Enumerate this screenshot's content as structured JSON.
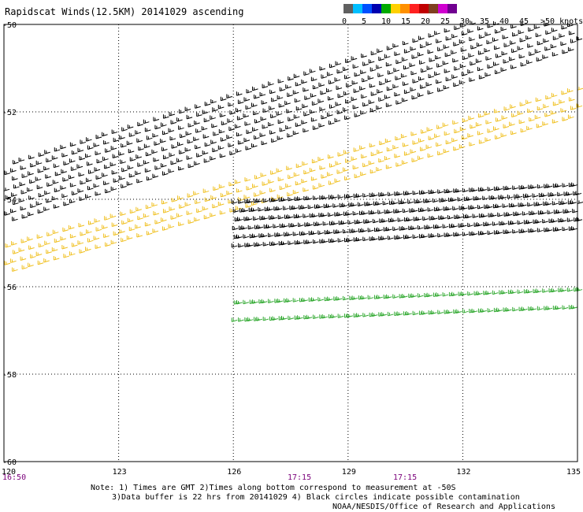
{
  "title": "Rapidscat Winds(12.5KM) 20141029 ascending",
  "colorbar": {
    "unit_label": ">50 knots",
    "labels": [
      "0",
      "5",
      "10",
      "15",
      "20",
      "25",
      "30",
      "35",
      "40",
      "45"
    ],
    "colors": [
      "#606060",
      "#00bfff",
      "#0050ff",
      "#0000b0",
      "#00aa00",
      "#ffd000",
      "#ff9000",
      "#ff2020",
      "#c00000",
      "#804020",
      "#d000d0",
      "#700090"
    ]
  },
  "map": {
    "lon_labels": [
      "120",
      "123",
      "126",
      "129",
      "132",
      "135"
    ],
    "lat_labels": [
      "-50",
      "-52",
      "-54",
      "-56",
      "-58",
      "-60"
    ],
    "time_labels": [
      "16:50",
      "17:15",
      "17:15"
    ],
    "grid_color": "#000000"
  },
  "chart_data": {
    "type": "scatter",
    "x_axis": "longitude",
    "y_axis": "latitude",
    "xlim": [
      120,
      135
    ],
    "ylim": [
      -60,
      -50
    ],
    "swaths": [
      {
        "lon_start": 120,
        "lat_start": -53.9,
        "lon_end": 135,
        "lat_end": -49.9,
        "width": 1.3,
        "color": "#000000"
      },
      {
        "lon_start": 120,
        "lat_start": -55.4,
        "lon_end": 135,
        "lat_end": -51.8,
        "width": 0.6,
        "color": "#f0c020"
      },
      {
        "lon_start": 126,
        "lat_start": -54.6,
        "lon_end": 135,
        "lat_end": -54.2,
        "width": 1.0,
        "color": "#000000"
      },
      {
        "lon_start": 126,
        "lat_start": -56.6,
        "lon_end": 135,
        "lat_end": -56.3,
        "width": 0.4,
        "color": "#33aa33"
      }
    ]
  },
  "notes": {
    "line1": "Note: 1) Times are GMT 2)Times along bottom correspond to measurement at -50S",
    "line2": "3)Data buffer is 22 hrs from 20141029 4) Black circles indicate possible contamination",
    "line3": "NOAA/NESDIS/Office of Research and Applications"
  }
}
